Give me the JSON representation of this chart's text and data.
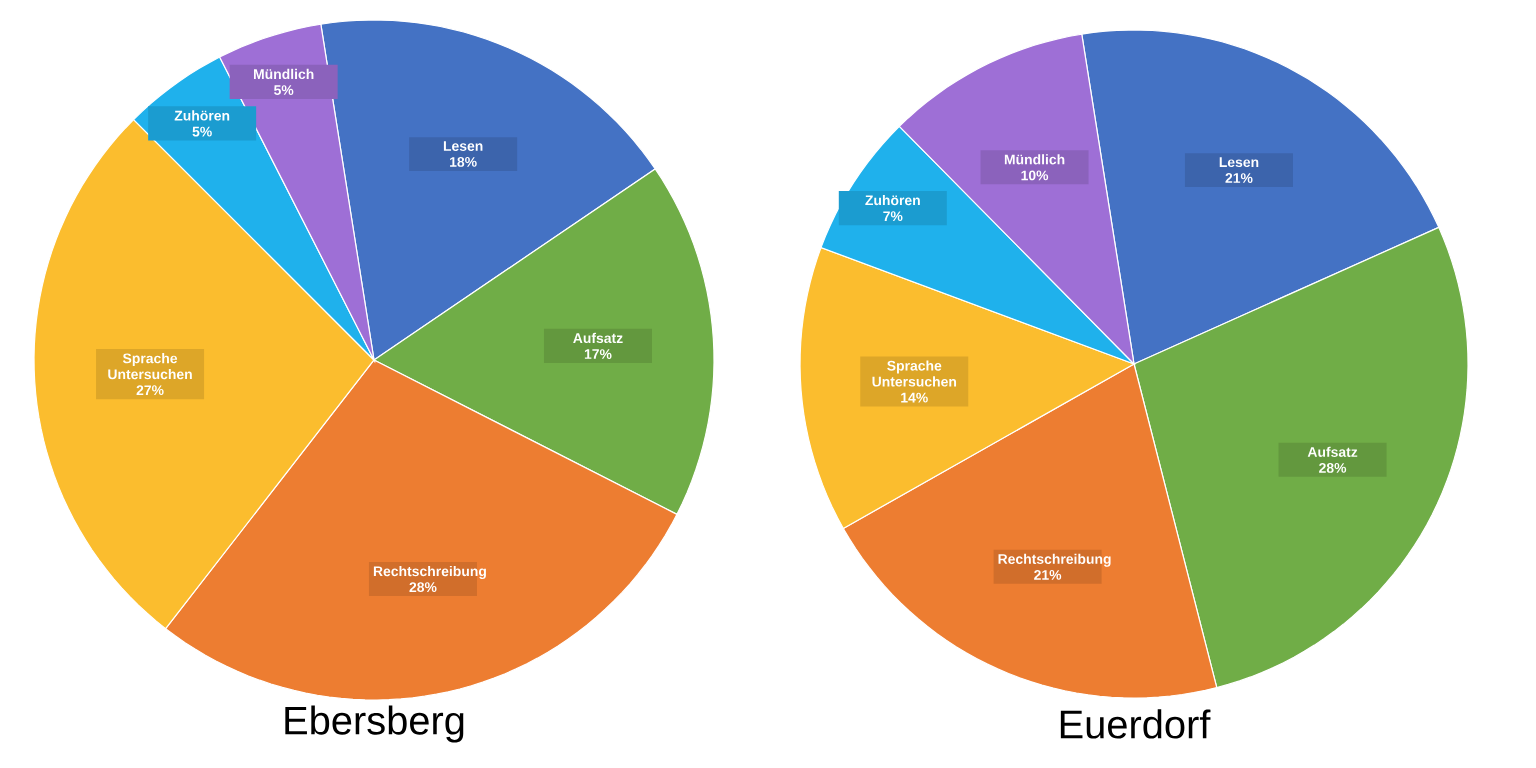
{
  "chart_data": [
    {
      "type": "pie",
      "title": "Ebersberg",
      "categories": [
        "Lesen",
        "Aufsatz",
        "Rechtschreibung",
        "Sprache Untersuchen",
        "Zuhören",
        "Mündlich"
      ],
      "values": [
        18,
        17,
        28,
        27,
        5,
        5
      ],
      "value_labels": [
        "18%",
        "17%",
        "28%",
        "27%",
        "5%",
        "5%"
      ],
      "colors": [
        "#4472c4",
        "#70ad47",
        "#ed7d31",
        "#fbbd2e",
        "#1fb1ec",
        "#9e6fd6"
      ]
    },
    {
      "type": "pie",
      "title": "Euerdorf",
      "categories": [
        "Lesen",
        "Aufsatz",
        "Rechtschreibung",
        "Sprache Untersuchen",
        "Zuhören",
        "Mündlich"
      ],
      "values": [
        21,
        28,
        21,
        14,
        7,
        10
      ],
      "value_labels": [
        "21%",
        "28%",
        "21%",
        "14%",
        "7%",
        "10%"
      ],
      "colors": [
        "#4472c4",
        "#70ad47",
        "#ed7d31",
        "#fbbd2e",
        "#1fb1ec",
        "#9e6fd6"
      ]
    }
  ]
}
